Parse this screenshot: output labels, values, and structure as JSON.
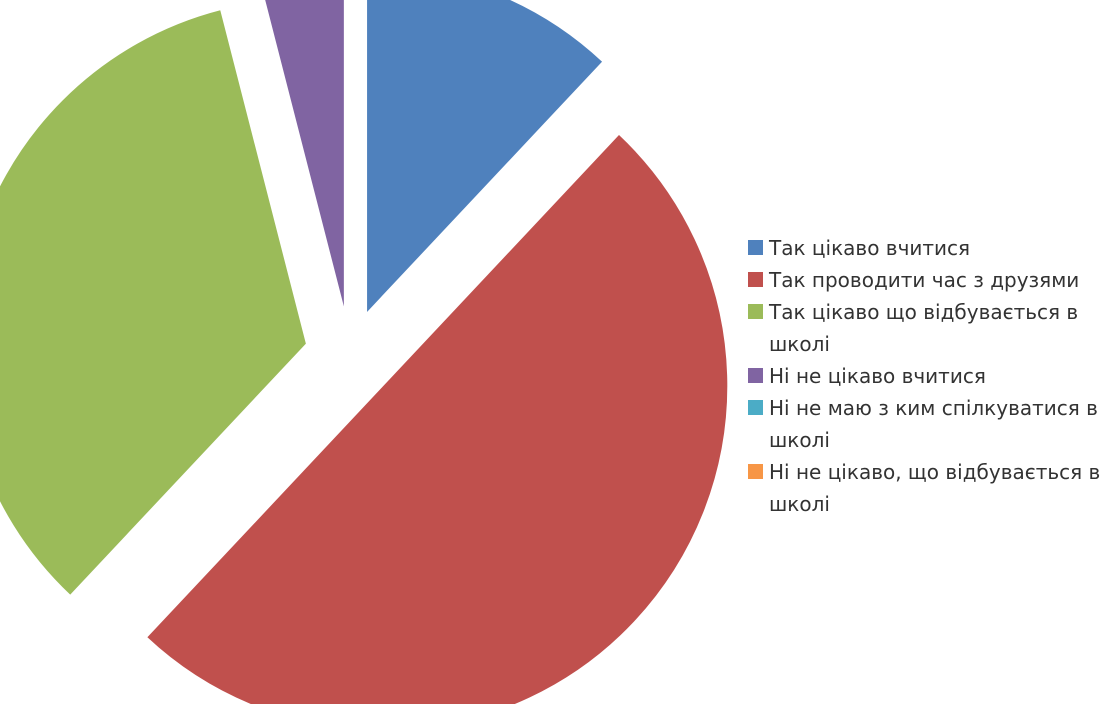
{
  "chart_data": {
    "type": "pie",
    "exploded": true,
    "legend_position": "right",
    "categories": [
      "Так цікаво вчитися",
      "Так проводити час з друзями",
      "Так цікаво що відбувається в школі",
      "Ні не цікаво вчитися",
      "Ні не маю з ким спілкуватися в школі",
      "Ні не цікаво, що відбувається в школі"
    ],
    "values": [
      12,
      50,
      34,
      4,
      0,
      0
    ],
    "colors": [
      "#4f81bd",
      "#c0504d",
      "#9bbb59",
      "#8064a2",
      "#4bacc6",
      "#f79646"
    ]
  }
}
